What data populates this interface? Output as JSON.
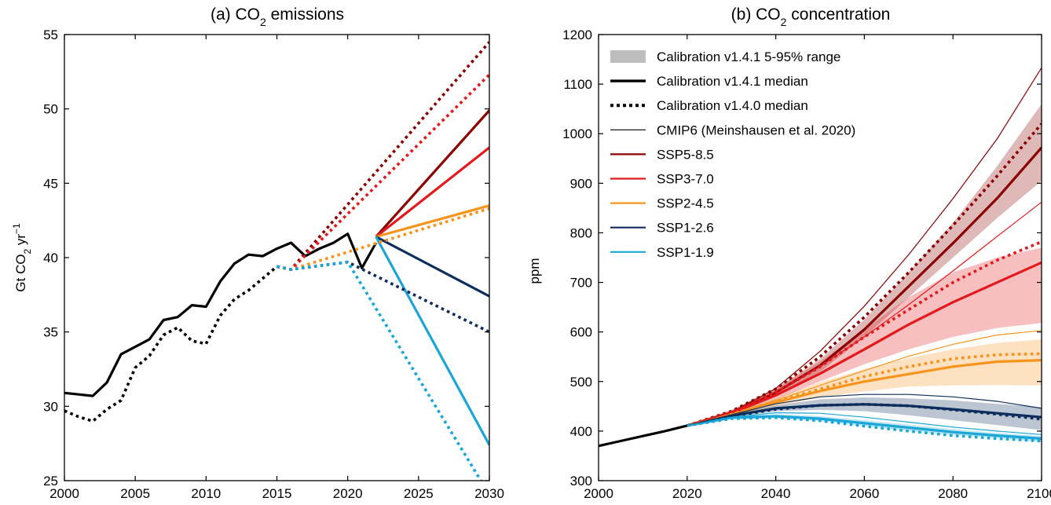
{
  "figure": {
    "colors": {
      "ssp585": "#8b0000",
      "ssp370": "#e31a1c",
      "ssp245": "#f7941d",
      "ssp126": "#0d2e5c",
      "ssp119": "#1aa6d6",
      "historical": "#000000",
      "legend_range": "#bdbdbd"
    }
  },
  "chart_data": [
    {
      "type": "line",
      "title_prefix": "(a) CO",
      "title_sub": "2",
      "title_suffix": " emissions",
      "ylabel_main": "Gt CO",
      "ylabel_sub": "2",
      "ylabel_mid": " yr",
      "ylabel_sup": "−1",
      "xlim": [
        2000,
        2030
      ],
      "ylim": [
        25,
        55
      ],
      "xticks": [
        2000,
        2005,
        2010,
        2015,
        2020,
        2025,
        2030
      ],
      "yticks": [
        25,
        30,
        35,
        40,
        45,
        50,
        55
      ],
      "grid": false,
      "series": [
        {
          "key": "hist_v141",
          "style": "solid",
          "color_key": "historical",
          "x": [
            2000,
            2001,
            2002,
            2003,
            2004,
            2005,
            2006,
            2007,
            2008,
            2009,
            2010,
            2011,
            2012,
            2013,
            2014,
            2015,
            2016,
            2017,
            2018,
            2019,
            2020,
            2021,
            2022
          ],
          "y": [
            30.9,
            30.8,
            30.7,
            31.6,
            33.5,
            34.0,
            34.5,
            35.8,
            36.0,
            36.8,
            36.7,
            38.4,
            39.6,
            40.2,
            40.1,
            40.6,
            41.0,
            40.1,
            40.6,
            41.0,
            41.6,
            39.3,
            41.0
          ]
        },
        {
          "key": "hist_v140",
          "style": "dotted",
          "color_key": "historical",
          "x": [
            2000,
            2001,
            2002,
            2003,
            2004,
            2005,
            2006,
            2007,
            2008,
            2009,
            2010,
            2011,
            2012,
            2013,
            2014,
            2015
          ],
          "y": [
            29.7,
            29.3,
            29.0,
            29.8,
            30.4,
            32.6,
            33.4,
            34.8,
            35.3,
            34.4,
            34.2,
            36.1,
            37.2,
            37.8,
            38.6,
            39.4
          ]
        },
        {
          "key": "ssp585_v141",
          "style": "solid",
          "color_key": "ssp585",
          "x": [
            2022,
            2030
          ],
          "y": [
            41.4,
            49.9
          ]
        },
        {
          "key": "ssp370_v141",
          "style": "solid",
          "color_key": "ssp370",
          "x": [
            2022,
            2030
          ],
          "y": [
            41.4,
            47.4
          ]
        },
        {
          "key": "ssp245_v141",
          "style": "solid",
          "color_key": "ssp245",
          "x": [
            2022,
            2030
          ],
          "y": [
            41.4,
            43.5
          ]
        },
        {
          "key": "ssp126_v141",
          "style": "solid",
          "color_key": "ssp126",
          "x": [
            2022,
            2030
          ],
          "y": [
            41.4,
            37.4
          ]
        },
        {
          "key": "ssp119_v141",
          "style": "solid",
          "color_key": "ssp119",
          "x": [
            2022,
            2030
          ],
          "y": [
            41.4,
            27.4
          ]
        },
        {
          "key": "ssp585_v140",
          "style": "dotted",
          "color_key": "ssp585",
          "x": [
            2015,
            2016,
            2030
          ],
          "y": [
            39.4,
            39.2,
            54.5
          ]
        },
        {
          "key": "ssp370_v140",
          "style": "dotted",
          "color_key": "ssp370",
          "x": [
            2015,
            2016,
            2030
          ],
          "y": [
            39.4,
            39.2,
            52.3
          ]
        },
        {
          "key": "ssp245_v140",
          "style": "dotted",
          "color_key": "ssp245",
          "x": [
            2015,
            2016,
            2030
          ],
          "y": [
            39.4,
            39.2,
            43.3
          ]
        },
        {
          "key": "ssp126_v140",
          "style": "dotted",
          "color_key": "ssp126",
          "x": [
            2015,
            2016,
            2020,
            2030
          ],
          "y": [
            39.4,
            39.2,
            39.7,
            35.0
          ]
        },
        {
          "key": "ssp119_v140",
          "style": "dotted",
          "color_key": "ssp119",
          "x": [
            2015,
            2016,
            2020,
            2029.4
          ],
          "y": [
            39.4,
            39.2,
            39.7,
            25.0
          ]
        }
      ]
    },
    {
      "type": "line",
      "title_prefix": "(b) CO",
      "title_sub": "2",
      "title_suffix": " concentration",
      "ylabel": "ppm",
      "xlim": [
        2000,
        2100
      ],
      "ylim": [
        300,
        1200
      ],
      "xticks": [
        2000,
        2020,
        2040,
        2060,
        2080,
        2100
      ],
      "yticks": [
        300,
        400,
        500,
        600,
        700,
        800,
        900,
        1000,
        1100,
        1200
      ],
      "grid": false,
      "legend_position": "top-left",
      "legend": [
        {
          "label": "Calibration v1.4.1 5-95% range",
          "kind": "patch",
          "color_key": "legend_range"
        },
        {
          "label": "Calibration v1.4.1 median",
          "kind": "thick",
          "color_key": "historical"
        },
        {
          "label": "Calibration v1.4.0 median",
          "kind": "dotted",
          "color_key": "historical"
        },
        {
          "label": "CMIP6 (Meinshausen et al. 2020)",
          "kind": "thin",
          "color_key": "historical"
        },
        {
          "label": "SSP5-8.5",
          "kind": "medium",
          "color_key": "ssp585"
        },
        {
          "label": "SSP3-7.0",
          "kind": "medium",
          "color_key": "ssp370"
        },
        {
          "label": "SSP2-4.5",
          "kind": "medium",
          "color_key": "ssp245"
        },
        {
          "label": "SSP1-2.6",
          "kind": "medium",
          "color_key": "ssp126"
        },
        {
          "label": "SSP1-1.9",
          "kind": "medium",
          "color_key": "ssp119"
        }
      ],
      "bands": [
        {
          "key": "ssp585",
          "color_key": "ssp585",
          "x": [
            2020,
            2030,
            2040,
            2050,
            2060,
            2070,
            2080,
            2090,
            2100
          ],
          "lo": [
            410,
            434,
            470,
            520,
            590,
            670,
            750,
            830,
            905
          ],
          "hi": [
            412,
            442,
            486,
            545,
            625,
            720,
            820,
            935,
            1060
          ]
        },
        {
          "key": "ssp370",
          "color_key": "ssp370",
          "x": [
            2020,
            2030,
            2040,
            2050,
            2060,
            2070,
            2080,
            2090,
            2100
          ],
          "lo": [
            410,
            432,
            463,
            500,
            535,
            565,
            590,
            608,
            618
          ],
          "hi": [
            412,
            442,
            485,
            540,
            605,
            670,
            720,
            750,
            770
          ]
        },
        {
          "key": "ssp245",
          "color_key": "ssp245",
          "x": [
            2020,
            2030,
            2040,
            2050,
            2060,
            2070,
            2080,
            2090,
            2100
          ],
          "lo": [
            410,
            430,
            450,
            468,
            480,
            490,
            492,
            493,
            492
          ],
          "hi": [
            412,
            438,
            466,
            498,
            525,
            547,
            565,
            578,
            585
          ]
        },
        {
          "key": "ssp126",
          "color_key": "ssp126",
          "x": [
            2020,
            2030,
            2040,
            2050,
            2060,
            2070,
            2080,
            2090,
            2100
          ],
          "lo": [
            410,
            428,
            440,
            443,
            440,
            432,
            422,
            412,
            402
          ],
          "hi": [
            412,
            434,
            452,
            464,
            468,
            466,
            462,
            455,
            448
          ]
        },
        {
          "key": "ssp119",
          "color_key": "ssp119",
          "x": [
            2020,
            2030,
            2040,
            2050,
            2060,
            2070,
            2080,
            2090,
            2100
          ],
          "lo": [
            410,
            424,
            426,
            420,
            410,
            400,
            392,
            386,
            378
          ],
          "hi": [
            412,
            430,
            434,
            430,
            422,
            413,
            404,
            396,
            390
          ]
        }
      ],
      "series": [
        {
          "key": "hist_median",
          "style": "solid",
          "color_key": "historical",
          "x": [
            2000,
            2005,
            2010,
            2015,
            2020
          ],
          "y": [
            370,
            380,
            390,
            400,
            411
          ]
        },
        {
          "key": "ssp585_v141",
          "style": "solid",
          "color_key": "ssp585",
          "x": [
            2020,
            2030,
            2040,
            2050,
            2060,
            2070,
            2080,
            2090,
            2100
          ],
          "y": [
            411,
            437,
            478,
            532,
            605,
            692,
            779,
            870,
            972
          ]
        },
        {
          "key": "ssp370_v141",
          "style": "solid",
          "color_key": "ssp370",
          "x": [
            2020,
            2030,
            2040,
            2050,
            2060,
            2070,
            2080,
            2090,
            2100
          ],
          "y": [
            411,
            436,
            472,
            516,
            565,
            615,
            660,
            700,
            740
          ]
        },
        {
          "key": "ssp245_v141",
          "style": "solid",
          "color_key": "ssp245",
          "x": [
            2020,
            2030,
            2040,
            2050,
            2060,
            2070,
            2080,
            2090,
            2100
          ],
          "y": [
            411,
            433,
            458,
            481,
            500,
            515,
            530,
            540,
            543
          ]
        },
        {
          "key": "ssp126_v141",
          "style": "solid",
          "color_key": "ssp126",
          "x": [
            2020,
            2030,
            2040,
            2050,
            2060,
            2070,
            2080,
            2090,
            2100
          ],
          "y": [
            411,
            431,
            446,
            452,
            454,
            451,
            444,
            436,
            428
          ]
        },
        {
          "key": "ssp119_v141",
          "style": "solid",
          "color_key": "ssp119",
          "x": [
            2020,
            2030,
            2040,
            2050,
            2060,
            2070,
            2080,
            2090,
            2100
          ],
          "y": [
            411,
            427,
            430,
            425,
            416,
            407,
            398,
            391,
            385
          ]
        },
        {
          "key": "ssp585_v140",
          "style": "dotted",
          "color_key": "ssp585",
          "x": [
            2020,
            2030,
            2040,
            2050,
            2060,
            2070,
            2080,
            2090,
            2100
          ],
          "y": [
            411,
            440,
            485,
            550,
            630,
            720,
            815,
            915,
            1020
          ]
        },
        {
          "key": "ssp370_v140",
          "style": "dotted",
          "color_key": "ssp370",
          "x": [
            2020,
            2030,
            2040,
            2050,
            2060,
            2070,
            2080,
            2090,
            2100
          ],
          "y": [
            411,
            438,
            478,
            530,
            590,
            645,
            700,
            745,
            782
          ]
        },
        {
          "key": "ssp245_v140",
          "style": "dotted",
          "color_key": "ssp245",
          "x": [
            2020,
            2030,
            2040,
            2050,
            2060,
            2070,
            2080,
            2090,
            2100
          ],
          "y": [
            411,
            434,
            460,
            485,
            510,
            530,
            546,
            554,
            556
          ]
        },
        {
          "key": "ssp126_v140",
          "style": "dotted",
          "color_key": "ssp126",
          "x": [
            2020,
            2030,
            2040,
            2050,
            2060,
            2070,
            2080,
            2090,
            2100
          ],
          "y": [
            411,
            430,
            444,
            452,
            454,
            451,
            443,
            434,
            424
          ]
        },
        {
          "key": "ssp119_v140",
          "style": "dotted",
          "color_key": "ssp119",
          "x": [
            2020,
            2030,
            2040,
            2050,
            2060,
            2070,
            2080,
            2090,
            2100
          ],
          "y": [
            411,
            425,
            427,
            421,
            410,
            400,
            391,
            385,
            380
          ]
        },
        {
          "key": "ssp585_cmip6",
          "style": "thin",
          "color_key": "ssp585",
          "x": [
            2020,
            2030,
            2040,
            2050,
            2060,
            2070,
            2080,
            2090,
            2100
          ],
          "y": [
            411,
            438,
            486,
            561,
            652,
            756,
            869,
            990,
            1133
          ]
        },
        {
          "key": "ssp370_cmip6",
          "style": "thin",
          "color_key": "ssp370",
          "x": [
            2020,
            2030,
            2040,
            2050,
            2060,
            2070,
            2080,
            2090,
            2100
          ],
          "y": [
            411,
            438,
            479,
            530,
            590,
            655,
            723,
            793,
            862
          ]
        },
        {
          "key": "ssp245_cmip6",
          "style": "thin",
          "color_key": "ssp245",
          "x": [
            2020,
            2030,
            2040,
            2050,
            2060,
            2070,
            2080,
            2090,
            2100
          ],
          "y": [
            411,
            434,
            462,
            492,
            522,
            551,
            575,
            594,
            603
          ]
        },
        {
          "key": "ssp126_cmip6",
          "style": "thin",
          "color_key": "ssp126",
          "x": [
            2020,
            2030,
            2040,
            2050,
            2060,
            2070,
            2080,
            2090,
            2100
          ],
          "y": [
            411,
            433,
            455,
            469,
            474,
            474,
            469,
            460,
            446
          ]
        },
        {
          "key": "ssp119_cmip6",
          "style": "thin",
          "color_key": "ssp119",
          "x": [
            2020,
            2030,
            2040,
            2050,
            2060,
            2070,
            2080,
            2090,
            2100
          ],
          "y": [
            411,
            428,
            437,
            436,
            428,
            418,
            408,
            400,
            393
          ]
        }
      ]
    }
  ]
}
